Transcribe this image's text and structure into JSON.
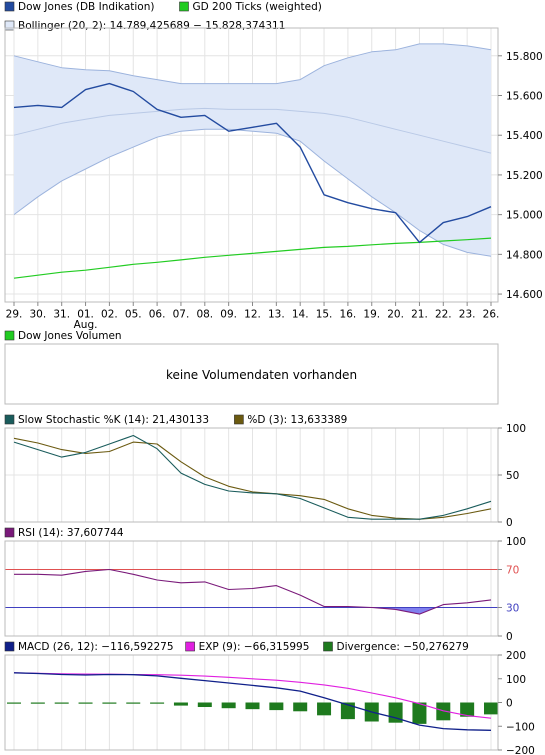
{
  "colors": {
    "dow": "#234ba0",
    "gd200": "#22cc22",
    "boll_fill": "#dfe8f8",
    "boll_line": "#9cb3dd",
    "stoch_k": "#1a5c5c",
    "stoch_d": "#6b5a10",
    "rsi": "#7a1a7a",
    "rsi_band_hi": "#e05050",
    "rsi_band_lo": "#4040c0",
    "rsi_fill": "#8080ee",
    "macd": "#10208a",
    "macd_exp": "#e020e0",
    "macd_div": "#1e7a1e",
    "grid": "#e4e4e4",
    "frame": "#bbbbbb"
  },
  "chart_data": [
    {
      "type": "line",
      "panel": "price",
      "legend": [
        {
          "label": "Dow Jones (DB Indikation)",
          "color_key": "dow"
        },
        {
          "label": "GD 200 Ticks (weighted)",
          "color_key": "gd200"
        },
        {
          "label": "Bollinger (20, 2): 14.789,425689 − 15.828,374311",
          "color_key": "boll_fill"
        }
      ],
      "x_labels": [
        "29.",
        "30.",
        "31.",
        "01.",
        "02.",
        "05.",
        "06.",
        "07.",
        "08.",
        "09.",
        "12.",
        "13.",
        "14.",
        "15.",
        "16.",
        "19.",
        "20.",
        "21.",
        "22.",
        "23.",
        "26."
      ],
      "x_sublabel": {
        "index": 3,
        "text": "Aug."
      },
      "y_ticks": [
        "15.800",
        "15.600",
        "15.400",
        "15.200",
        "15.000",
        "14.800",
        "14.600"
      ],
      "y_tick_values": [
        15800,
        15600,
        15400,
        15200,
        15000,
        14800,
        14600
      ],
      "ylim": [
        14560,
        15940
      ],
      "series": [
        {
          "key": "dow",
          "values": [
            15540,
            15550,
            15540,
            15630,
            15660,
            15620,
            15530,
            15490,
            15500,
            15420,
            15440,
            15460,
            15340,
            15100,
            15060,
            15030,
            15010,
            14860,
            14960,
            14990,
            15040
          ]
        },
        {
          "key": "gd200",
          "values": [
            14680,
            14695,
            14710,
            14720,
            14735,
            14750,
            14760,
            14772,
            14785,
            14795,
            14805,
            14815,
            14825,
            14835,
            14840,
            14848,
            14855,
            14860,
            14867,
            14874,
            14882
          ]
        },
        {
          "key": "boll_upper",
          "values": [
            15800,
            15770,
            15740,
            15730,
            15725,
            15700,
            15680,
            15660,
            15660,
            15660,
            15660,
            15660,
            15680,
            15750,
            15790,
            15820,
            15830,
            15860,
            15860,
            15850,
            15830
          ]
        },
        {
          "key": "boll_mid",
          "values": [
            15400,
            15430,
            15460,
            15480,
            15500,
            15510,
            15520,
            15530,
            15535,
            15530,
            15530,
            15530,
            15520,
            15510,
            15490,
            15460,
            15430,
            15400,
            15370,
            15340,
            15310
          ]
        },
        {
          "key": "boll_lower",
          "values": [
            15000,
            15090,
            15170,
            15230,
            15290,
            15340,
            15390,
            15420,
            15430,
            15430,
            15420,
            15410,
            15370,
            15270,
            15180,
            15090,
            15010,
            14920,
            14850,
            14810,
            14790
          ]
        }
      ]
    },
    {
      "type": "text",
      "panel": "volume",
      "legend": [
        {
          "label": "Dow Jones Volumen",
          "color_key": "gd200"
        }
      ],
      "message": "keine Volumendaten vorhanden"
    },
    {
      "type": "line",
      "panel": "stochastic",
      "legend": [
        {
          "label": "Slow Stochastic %K (14): 21,430133",
          "color_key": "stoch_k"
        },
        {
          "label": "%D (3): 13,633389",
          "color_key": "stoch_d"
        }
      ],
      "y_ticks": [
        "100",
        "50",
        "0"
      ],
      "y_tick_values": [
        100,
        50,
        0
      ],
      "ylim": [
        0,
        100
      ],
      "series": [
        {
          "key": "stoch_k",
          "values": [
            85,
            77,
            69,
            74,
            83,
            92,
            78,
            52,
            40,
            33,
            31,
            30,
            25,
            15,
            5,
            3,
            3,
            3,
            7,
            14,
            22
          ]
        },
        {
          "key": "stoch_d",
          "values": [
            89,
            84,
            77,
            73,
            75,
            85,
            83,
            64,
            48,
            38,
            32,
            30,
            28,
            24,
            14,
            7,
            4,
            3,
            5,
            9,
            14
          ]
        }
      ]
    },
    {
      "type": "line",
      "panel": "rsi",
      "legend": [
        {
          "label": "RSI (14): 37,607744",
          "color_key": "rsi"
        }
      ],
      "y_ticks": [
        "100",
        "70",
        "30",
        "0"
      ],
      "y_tick_values": [
        100,
        70,
        30,
        0
      ],
      "ylim": [
        0,
        100
      ],
      "bands": [
        70,
        30
      ],
      "series": [
        {
          "key": "rsi",
          "values": [
            65,
            65,
            64,
            68,
            70,
            65,
            59,
            56,
            57,
            49,
            50,
            53,
            43,
            31,
            31,
            30,
            28,
            23,
            33,
            35,
            38
          ]
        }
      ]
    },
    {
      "type": "bar+line",
      "panel": "macd",
      "legend": [
        {
          "label": "MACD (26, 12): −116,592275",
          "color_key": "macd"
        },
        {
          "label": "EXP (9): −66,315995",
          "color_key": "macd_exp"
        },
        {
          "label": "Divergence: −50,276279",
          "color_key": "macd_div"
        }
      ],
      "y_ticks": [
        "200",
        "100",
        "0",
        "−100",
        "−200"
      ],
      "y_tick_values": [
        200,
        100,
        0,
        -100,
        -200
      ],
      "ylim": [
        -200,
        200
      ],
      "series": [
        {
          "key": "macd",
          "values": [
            125,
            122,
            118,
            116,
            118,
            117,
            112,
            102,
            92,
            82,
            72,
            62,
            48,
            20,
            -10,
            -40,
            -65,
            -95,
            -110,
            -115,
            -117
          ]
        },
        {
          "key": "macd_exp",
          "values": [
            125,
            123,
            121,
            120,
            119,
            118,
            117,
            115,
            111,
            106,
            100,
            94,
            85,
            74,
            60,
            40,
            20,
            -5,
            -35,
            -55,
            -66
          ]
        },
        {
          "key": "macd_div",
          "values": [
            0,
            -1,
            -3,
            -4,
            -1,
            -1,
            -5,
            -13,
            -19,
            -24,
            -28,
            -32,
            -37,
            -54,
            -70,
            -80,
            -85,
            -90,
            -75,
            -60,
            -50
          ]
        }
      ]
    }
  ]
}
